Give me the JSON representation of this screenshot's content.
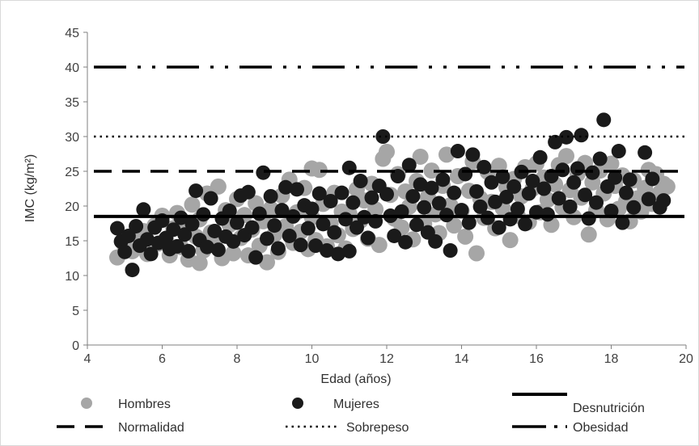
{
  "chart_data": {
    "type": "scatter",
    "title": "",
    "xlabel": "Edad (años)",
    "ylabel": "IMC (kg/m²)",
    "xlim": [
      4,
      20
    ],
    "ylim": [
      0,
      45
    ],
    "x_ticks": [
      4,
      6,
      8,
      10,
      12,
      14,
      16,
      18,
      20
    ],
    "y_ticks": [
      0,
      5,
      10,
      15,
      20,
      25,
      30,
      35,
      40,
      45
    ],
    "grid": false,
    "legend_position": "bottom",
    "series": [
      {
        "name": "Hombres",
        "kind": "scatter",
        "color": "#a6a6a6",
        "points": [
          [
            4.8,
            12.6
          ],
          [
            5.0,
            14.2
          ],
          [
            5.2,
            13.5
          ],
          [
            5.3,
            15.8
          ],
          [
            5.5,
            16.4
          ],
          [
            5.6,
            13.1
          ],
          [
            5.8,
            17.2
          ],
          [
            5.9,
            14.6
          ],
          [
            6.0,
            18.6
          ],
          [
            6.1,
            15.2
          ],
          [
            6.2,
            12.9
          ],
          [
            6.3,
            16.8
          ],
          [
            6.4,
            19.0
          ],
          [
            6.5,
            14.1
          ],
          [
            6.6,
            17.6
          ],
          [
            6.7,
            12.3
          ],
          [
            6.8,
            20.2
          ],
          [
            6.9,
            15.6
          ],
          [
            7.0,
            11.8
          ],
          [
            7.0,
            18.1
          ],
          [
            7.1,
            13.6
          ],
          [
            7.2,
            21.8
          ],
          [
            7.3,
            16.2
          ],
          [
            7.4,
            14.8
          ],
          [
            7.5,
            22.8
          ],
          [
            7.6,
            12.5
          ],
          [
            7.7,
            19.4
          ],
          [
            7.8,
            17.3
          ],
          [
            7.9,
            13.2
          ],
          [
            8.0,
            21.0
          ],
          [
            8.1,
            15.4
          ],
          [
            8.2,
            18.7
          ],
          [
            8.3,
            12.9
          ],
          [
            8.4,
            16.6
          ],
          [
            8.5,
            20.4
          ],
          [
            8.6,
            14.3
          ],
          [
            8.7,
            17.8
          ],
          [
            8.8,
            11.9
          ],
          [
            8.9,
            19.6
          ],
          [
            9.0,
            15.9
          ],
          [
            9.1,
            13.4
          ],
          [
            9.2,
            21.5
          ],
          [
            9.3,
            17.1
          ],
          [
            9.4,
            23.8
          ],
          [
            9.5,
            14.7
          ],
          [
            9.6,
            19.1
          ],
          [
            9.7,
            16.3
          ],
          [
            9.8,
            22.6
          ],
          [
            9.9,
            13.8
          ],
          [
            10.0,
            18.4
          ],
          [
            10.0,
            25.4
          ],
          [
            10.1,
            15.1
          ],
          [
            10.2,
            25.2
          ],
          [
            10.3,
            20.3
          ],
          [
            10.4,
            14.2
          ],
          [
            10.5,
            17.5
          ],
          [
            10.6,
            21.9
          ],
          [
            10.7,
            15.8
          ],
          [
            10.8,
            19.2
          ],
          [
            10.9,
            13.9
          ],
          [
            11.0,
            18.9
          ],
          [
            11.1,
            16.7
          ],
          [
            11.2,
            22.4
          ],
          [
            11.3,
            17.9
          ],
          [
            11.4,
            20.8
          ],
          [
            11.5,
            15.3
          ],
          [
            11.6,
            23.2
          ],
          [
            11.7,
            19.5
          ],
          [
            11.8,
            14.4
          ],
          [
            11.9,
            26.8
          ],
          [
            12.0,
            27.8
          ],
          [
            12.1,
            21.6
          ],
          [
            12.2,
            18.2
          ],
          [
            12.3,
            24.6
          ],
          [
            12.4,
            16.9
          ],
          [
            12.5,
            22.1
          ],
          [
            12.6,
            19.9
          ],
          [
            12.7,
            15.2
          ],
          [
            12.8,
            23.6
          ],
          [
            12.9,
            27.1
          ],
          [
            13.0,
            17.4
          ],
          [
            13.1,
            21.3
          ],
          [
            13.2,
            25.1
          ],
          [
            13.3,
            18.8
          ],
          [
            13.4,
            16.1
          ],
          [
            13.5,
            22.9
          ],
          [
            13.6,
            27.4
          ],
          [
            13.7,
            20.1
          ],
          [
            13.8,
            17.2
          ],
          [
            13.9,
            24.3
          ],
          [
            14.0,
            19.3
          ],
          [
            14.1,
            15.6
          ],
          [
            14.2,
            22.2
          ],
          [
            14.3,
            26.4
          ],
          [
            14.4,
            13.2
          ],
          [
            14.5,
            21.1
          ],
          [
            14.6,
            18.3
          ],
          [
            14.7,
            24.9
          ],
          [
            14.8,
            20.6
          ],
          [
            14.9,
            16.8
          ],
          [
            15.0,
            25.8
          ],
          [
            15.1,
            19.7
          ],
          [
            15.2,
            22.7
          ],
          [
            15.3,
            15.1
          ],
          [
            15.4,
            23.9
          ],
          [
            15.5,
            18.6
          ],
          [
            15.6,
            21.4
          ],
          [
            15.7,
            25.6
          ],
          [
            15.8,
            17.7
          ],
          [
            15.9,
            22.5
          ],
          [
            16.0,
            26.1
          ],
          [
            16.1,
            19.1
          ],
          [
            16.2,
            24.1
          ],
          [
            16.3,
            20.9
          ],
          [
            16.4,
            17.3
          ],
          [
            16.5,
            23.1
          ],
          [
            16.6,
            25.9
          ],
          [
            16.7,
            19.8
          ],
          [
            16.8,
            27.2
          ],
          [
            16.9,
            22.3
          ],
          [
            17.0,
            18.4
          ],
          [
            17.1,
            24.6
          ],
          [
            17.2,
            21.2
          ],
          [
            17.3,
            26.2
          ],
          [
            17.4,
            15.9
          ],
          [
            17.5,
            23.4
          ],
          [
            17.6,
            19.4
          ],
          [
            17.7,
            25.1
          ],
          [
            17.8,
            21.8
          ],
          [
            17.9,
            18.1
          ],
          [
            18.0,
            26.1
          ],
          [
            18.1,
            22.9
          ],
          [
            18.2,
            19.6
          ],
          [
            18.3,
            24.4
          ],
          [
            18.4,
            20.7
          ],
          [
            18.5,
            17.8
          ],
          [
            18.6,
            23.7
          ],
          [
            18.7,
            21.1
          ],
          [
            18.8,
            19.2
          ],
          [
            18.9,
            22.6
          ],
          [
            19.0,
            25.2
          ],
          [
            19.1,
            20.3
          ],
          [
            19.2,
            24.6
          ],
          [
            19.3,
            21.9
          ],
          [
            19.4,
            23.2
          ],
          [
            19.5,
            22.8
          ]
        ]
      },
      {
        "name": "Mujeres",
        "kind": "scatter",
        "color": "#1a1a1a",
        "points": [
          [
            4.8,
            16.8
          ],
          [
            4.9,
            14.9
          ],
          [
            5.0,
            13.4
          ],
          [
            5.1,
            15.7
          ],
          [
            5.2,
            10.8
          ],
          [
            5.3,
            17.1
          ],
          [
            5.4,
            14.3
          ],
          [
            5.5,
            19.5
          ],
          [
            5.6,
            15.2
          ],
          [
            5.7,
            13.1
          ],
          [
            5.8,
            16.9
          ],
          [
            5.9,
            14.7
          ],
          [
            6.0,
            17.9
          ],
          [
            6.1,
            15.4
          ],
          [
            6.2,
            13.8
          ],
          [
            6.3,
            16.6
          ],
          [
            6.4,
            14.2
          ],
          [
            6.5,
            18.3
          ],
          [
            6.6,
            15.9
          ],
          [
            6.7,
            13.5
          ],
          [
            6.8,
            17.4
          ],
          [
            6.9,
            22.2
          ],
          [
            7.0,
            15.1
          ],
          [
            7.1,
            18.8
          ],
          [
            7.2,
            14.1
          ],
          [
            7.3,
            21.1
          ],
          [
            7.4,
            16.4
          ],
          [
            7.5,
            13.7
          ],
          [
            7.6,
            18.2
          ],
          [
            7.7,
            15.6
          ],
          [
            7.8,
            19.3
          ],
          [
            7.9,
            14.9
          ],
          [
            8.0,
            17.6
          ],
          [
            8.1,
            21.5
          ],
          [
            8.2,
            15.8
          ],
          [
            8.3,
            22.0
          ],
          [
            8.4,
            16.9
          ],
          [
            8.5,
            12.6
          ],
          [
            8.6,
            18.9
          ],
          [
            8.7,
            24.8
          ],
          [
            8.8,
            15.3
          ],
          [
            8.9,
            21.4
          ],
          [
            9.0,
            17.2
          ],
          [
            9.1,
            13.9
          ],
          [
            9.2,
            19.4
          ],
          [
            9.3,
            22.7
          ],
          [
            9.4,
            15.7
          ],
          [
            9.5,
            18.5
          ],
          [
            9.6,
            22.4
          ],
          [
            9.7,
            14.4
          ],
          [
            9.8,
            20.1
          ],
          [
            9.9,
            16.8
          ],
          [
            10.0,
            19.6
          ],
          [
            10.1,
            14.3
          ],
          [
            10.2,
            21.8
          ],
          [
            10.3,
            17.4
          ],
          [
            10.4,
            13.6
          ],
          [
            10.5,
            20.7
          ],
          [
            10.6,
            16.2
          ],
          [
            10.7,
            13.1
          ],
          [
            10.8,
            21.9
          ],
          [
            10.9,
            18.1
          ],
          [
            11.0,
            25.5
          ],
          [
            11.0,
            13.5
          ],
          [
            11.1,
            20.5
          ],
          [
            11.2,
            16.9
          ],
          [
            11.3,
            23.6
          ],
          [
            11.4,
            18.4
          ],
          [
            11.5,
            15.4
          ],
          [
            11.6,
            21.2
          ],
          [
            11.7,
            17.8
          ],
          [
            11.8,
            22.9
          ],
          [
            11.9,
            30.0
          ],
          [
            12.0,
            21.7
          ],
          [
            12.1,
            18.6
          ],
          [
            12.2,
            15.7
          ],
          [
            12.3,
            24.3
          ],
          [
            12.4,
            19.2
          ],
          [
            12.5,
            14.8
          ],
          [
            12.6,
            25.9
          ],
          [
            12.7,
            21.4
          ],
          [
            12.8,
            17.3
          ],
          [
            12.9,
            23.1
          ],
          [
            13.0,
            19.8
          ],
          [
            13.1,
            16.2
          ],
          [
            13.2,
            22.6
          ],
          [
            13.3,
            14.9
          ],
          [
            13.4,
            20.4
          ],
          [
            13.5,
            23.8
          ],
          [
            13.6,
            18.7
          ],
          [
            13.7,
            13.6
          ],
          [
            13.8,
            21.9
          ],
          [
            13.9,
            27.9
          ],
          [
            14.0,
            19.4
          ],
          [
            14.1,
            24.6
          ],
          [
            14.2,
            17.6
          ],
          [
            14.3,
            27.4
          ],
          [
            14.4,
            22.1
          ],
          [
            14.5,
            19.9
          ],
          [
            14.6,
            25.6
          ],
          [
            14.7,
            18.3
          ],
          [
            14.8,
            23.4
          ],
          [
            14.9,
            20.6
          ],
          [
            15.0,
            16.9
          ],
          [
            15.1,
            24.2
          ],
          [
            15.2,
            21.3
          ],
          [
            15.3,
            18.1
          ],
          [
            15.4,
            22.8
          ],
          [
            15.5,
            19.6
          ],
          [
            15.6,
            24.9
          ],
          [
            15.7,
            17.4
          ],
          [
            15.8,
            21.8
          ],
          [
            15.9,
            23.6
          ],
          [
            16.0,
            19.1
          ],
          [
            16.1,
            27.0
          ],
          [
            16.2,
            22.5
          ],
          [
            16.3,
            18.8
          ],
          [
            16.4,
            24.3
          ],
          [
            16.5,
            29.2
          ],
          [
            16.6,
            21.1
          ],
          [
            16.7,
            25.2
          ],
          [
            16.8,
            29.9
          ],
          [
            16.9,
            19.9
          ],
          [
            17.0,
            23.4
          ],
          [
            17.1,
            25.4
          ],
          [
            17.2,
            30.2
          ],
          [
            17.3,
            21.6
          ],
          [
            17.4,
            18.2
          ],
          [
            17.5,
            24.8
          ],
          [
            17.6,
            20.5
          ],
          [
            17.7,
            26.8
          ],
          [
            17.8,
            32.4
          ],
          [
            17.9,
            22.8
          ],
          [
            18.0,
            19.3
          ],
          [
            18.1,
            24.1
          ],
          [
            18.2,
            27.9
          ],
          [
            18.3,
            17.6
          ],
          [
            18.4,
            21.9
          ],
          [
            18.5,
            23.8
          ],
          [
            18.6,
            19.8
          ],
          [
            18.9,
            27.7
          ],
          [
            19.0,
            21.0
          ],
          [
            19.1,
            23.9
          ],
          [
            19.3,
            19.8
          ],
          [
            19.4,
            20.8
          ]
        ]
      },
      {
        "name": "Desnutrición",
        "kind": "hline",
        "y": 18.5,
        "dash": "solid"
      },
      {
        "name": "Normalidad",
        "kind": "hline",
        "y": 25,
        "dash": "dashed"
      },
      {
        "name": "Sobrepeso",
        "kind": "hline",
        "y": 30,
        "dash": "dotted"
      },
      {
        "name": "Obesidad",
        "kind": "hline",
        "y": 40,
        "dash": "dash-dot"
      }
    ]
  }
}
